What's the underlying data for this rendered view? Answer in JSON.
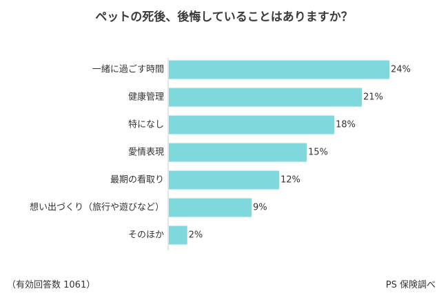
{
  "chart_data": {
    "type": "bar",
    "orientation": "horizontal",
    "title": "ペットの死後、後悔していることはありますか？",
    "categories": [
      "一緒に過ごす時間",
      "健康管理",
      "特になし",
      "愛情表現",
      "最期の看取り",
      "想い出づくり（旅行や遊びなど）",
      "そのほか"
    ],
    "values": [
      24,
      21,
      18,
      15,
      12,
      9,
      2
    ],
    "value_labels": [
      "24%",
      "21%",
      "18%",
      "15%",
      "12%",
      "9%",
      "2%"
    ],
    "xlim": [
      0,
      24
    ],
    "grid": false,
    "legend": "none",
    "bar_color": "#7fd8dc",
    "axis_color": "#cccccc"
  },
  "footer": {
    "left": "（有効回答数 1061）",
    "right": "PS 保険調べ"
  }
}
